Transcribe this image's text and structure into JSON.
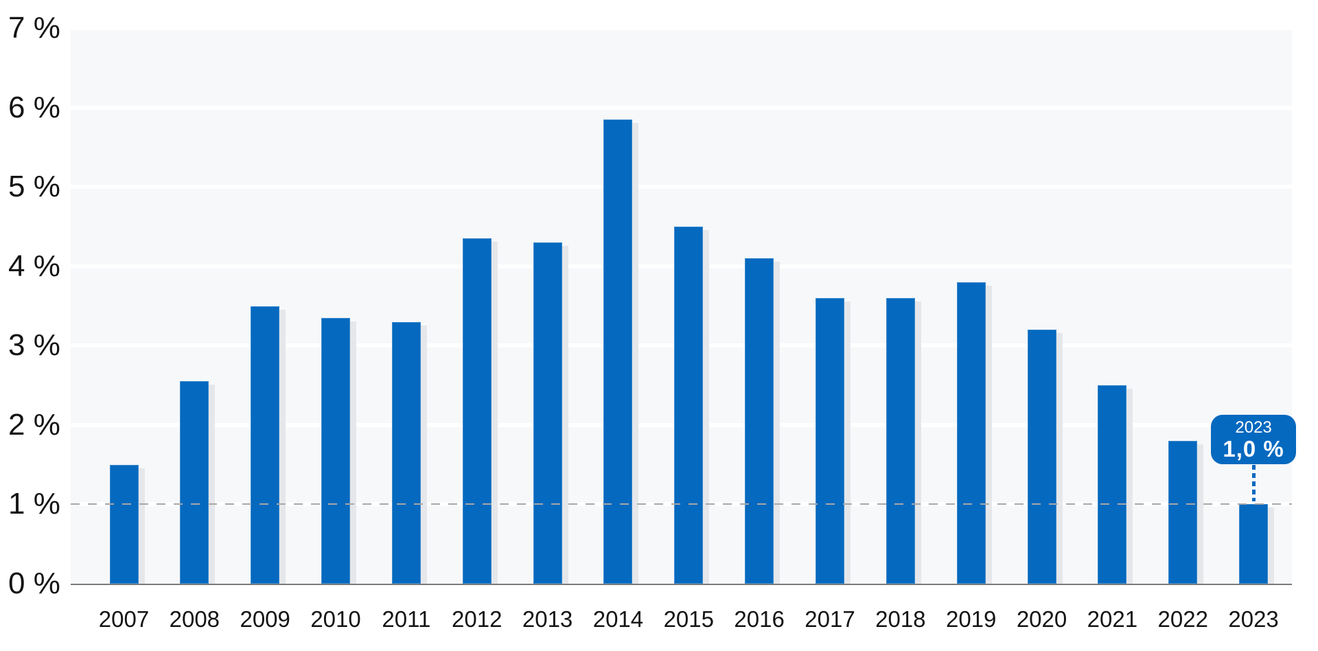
{
  "colors": {
    "background": "#ffffff",
    "bar": "#0569bf",
    "bar_shadow": "#e5e7ea",
    "plot_band": "#f7f8fa",
    "gridline": "#ffffff",
    "axis_line": "#7a7a7a",
    "reference_line": "#a7a7a7",
    "tick_text": "#141414",
    "callout_bg": "#0569bf",
    "callout_text": "#ffffff"
  },
  "chart_data": {
    "type": "bar",
    "title": "",
    "xlabel": "",
    "ylabel": "",
    "unit": "%",
    "categories": [
      "2007",
      "2008",
      "2009",
      "2010",
      "2011",
      "2012",
      "2013",
      "2014",
      "2015",
      "2016",
      "2017",
      "2018",
      "2019",
      "2020",
      "2021",
      "2022",
      "2023"
    ],
    "values": [
      1.5,
      2.55,
      3.5,
      3.35,
      3.3,
      4.35,
      4.3,
      5.85,
      4.5,
      4.1,
      3.6,
      3.6,
      3.8,
      3.2,
      2.5,
      1.8,
      1.0
    ],
    "ylim": [
      0,
      7
    ],
    "yticks": {
      "values": [
        0,
        1,
        2,
        3,
        4,
        5,
        6,
        7
      ],
      "labels": [
        "0 %",
        "1 %",
        "2 %",
        "3 %",
        "4 %",
        "5 %",
        "6 %",
        "7 %"
      ]
    },
    "grid": "horizontal white gridlines on light banded plot background",
    "legend": "none",
    "reference_line": {
      "value": 1.0,
      "style": "dashed"
    },
    "annotation": {
      "target_category": "2023",
      "year_label": "2023",
      "value_label": "1,0 %"
    }
  }
}
